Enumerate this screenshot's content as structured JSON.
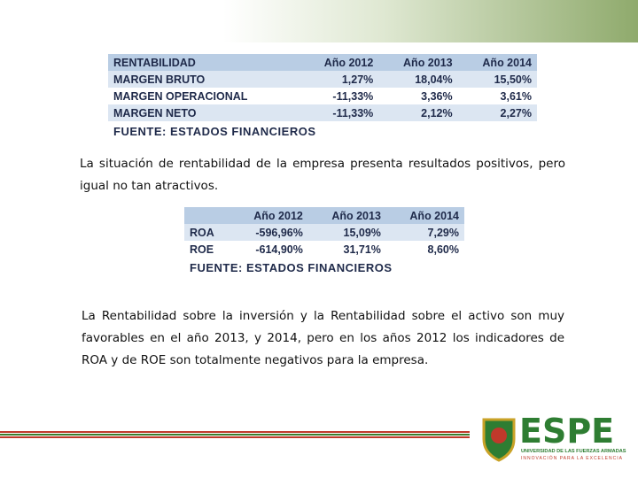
{
  "table1": {
    "header": [
      "RENTABILIDAD",
      "Año 2012",
      "Año 2013",
      "Año 2014"
    ],
    "rows": [
      [
        "MARGEN BRUTO",
        "1,27%",
        "18,04%",
        "15,50%"
      ],
      [
        "MARGEN OPERACIONAL",
        "-11,33%",
        "3,36%",
        "3,61%"
      ],
      [
        "MARGEN NETO",
        "-11,33%",
        "2,12%",
        "2,27%"
      ]
    ],
    "source": "FUENTE: ESTADOS FINANCIEROS"
  },
  "paragraph1": "La situación de rentabilidad de la empresa presenta resultados positivos, pero igual no tan atractivos.",
  "table2": {
    "header": [
      "",
      "Año 2012",
      "Año 2013",
      "Año 2014"
    ],
    "rows": [
      [
        "ROA",
        "-596,96%",
        "15,09%",
        "7,29%"
      ],
      [
        "ROE",
        "-614,90%",
        "31,71%",
        "8,60%"
      ]
    ],
    "source": "FUENTE: ESTADOS FINANCIEROS"
  },
  "paragraph2": "La Rentabilidad sobre la inversión y la Rentabilidad sobre el activo son muy favorables en el año 2013, y 2014, pero en los años 2012 los indicadores de ROA y de ROE son totalmente negativos para la empresa.",
  "logo": {
    "name": "ESPE",
    "university": "UNIVERSIDAD DE LAS FUERZAS ARMADAS",
    "motto": "INNOVACIÓN PARA LA EXCELENCIA"
  }
}
